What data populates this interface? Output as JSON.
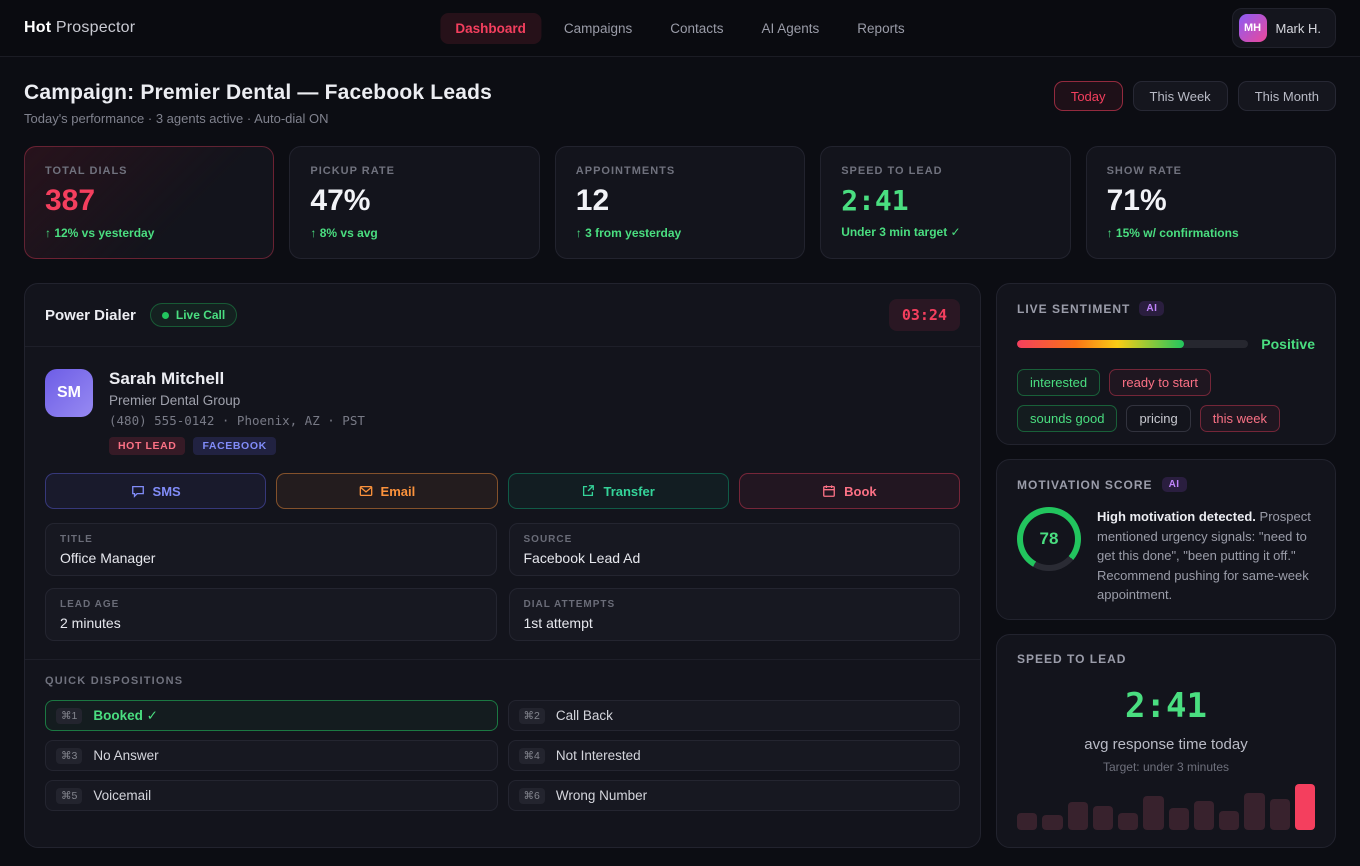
{
  "brand": {
    "name_bold": "Hot",
    "name_light": " Prospector"
  },
  "nav": {
    "items": [
      {
        "label": "Dashboard",
        "active": true
      },
      {
        "label": "Campaigns",
        "active": false
      },
      {
        "label": "Contacts",
        "active": false
      },
      {
        "label": "AI Agents",
        "active": false
      },
      {
        "label": "Reports",
        "active": false
      }
    ],
    "user": {
      "initials": "MH",
      "name": "Mark H."
    }
  },
  "campaign": {
    "title": "Campaign: Premier Dental — Facebook Leads",
    "subtitle": "Today's performance · 3 agents active · Auto-dial ON",
    "ranges": [
      {
        "label": "Today",
        "active": true
      },
      {
        "label": "This Week",
        "active": false
      },
      {
        "label": "This Month",
        "active": false
      }
    ]
  },
  "stats": [
    {
      "label": "Total Dials",
      "value": "387",
      "delta": "↑ 12% vs yesterday"
    },
    {
      "label": "Pickup Rate",
      "value": "47%",
      "delta": "↑ 8% vs avg"
    },
    {
      "label": "Appointments",
      "value": "12",
      "delta": "↑ 3 from yesterday"
    },
    {
      "label": "Speed to Lead",
      "value": "2:41",
      "delta": "Under 3 min target ✓"
    },
    {
      "label": "Show Rate",
      "value": "71%",
      "delta": "↑ 15% w/ confirmations"
    }
  ],
  "dialer": {
    "title": "Power Dialer",
    "live_badge": "Live Call",
    "timer": "03:24",
    "contact": {
      "initials": "SM",
      "name": "Sarah Mitchell",
      "company": "Premier Dental Group",
      "meta": "(480) 555-0142 · Phoenix, AZ · PST",
      "tags": [
        {
          "label": "HOT LEAD"
        },
        {
          "label": "FACEBOOK"
        }
      ]
    },
    "actions": [
      {
        "label": "SMS",
        "icon": "chat-bubble-icon"
      },
      {
        "label": "Email",
        "icon": "envelope-icon"
      },
      {
        "label": "Transfer",
        "icon": "external-arrow-icon"
      },
      {
        "label": "Book",
        "icon": "calendar-icon"
      }
    ],
    "fields": [
      {
        "label": "Title",
        "value": "Office Manager"
      },
      {
        "label": "Source",
        "value": "Facebook Lead Ad"
      },
      {
        "label": "Lead Age",
        "value": "2 minutes"
      },
      {
        "label": "Dial Attempts",
        "value": "1st attempt"
      }
    ],
    "dispositions": {
      "title": "Quick Dispositions",
      "items": [
        {
          "key": "⌘1",
          "label": "Booked ✓",
          "active": true
        },
        {
          "key": "⌘2",
          "label": "Call Back",
          "active": false
        },
        {
          "key": "⌘3",
          "label": "No Answer",
          "active": false
        },
        {
          "key": "⌘4",
          "label": "Not Interested",
          "active": false
        },
        {
          "key": "⌘5",
          "label": "Voicemail",
          "active": false
        },
        {
          "key": "⌘6",
          "label": "Wrong Number",
          "active": false
        }
      ]
    }
  },
  "sentiment": {
    "title": "Live Sentiment",
    "ai_badge": "AI",
    "value_label": "Positive",
    "fill_pct": 72,
    "tags": [
      {
        "label": "interested",
        "type": "green"
      },
      {
        "label": "ready to start",
        "type": "red"
      },
      {
        "label": "sounds good",
        "type": "green"
      },
      {
        "label": "pricing",
        "type": "neutral"
      },
      {
        "label": "this week",
        "type": "red"
      }
    ]
  },
  "motivation": {
    "title": "Motivation Score",
    "ai_badge": "AI",
    "score": 78,
    "text_bold": "High motivation detected.",
    "text_rest": " Prospect mentioned urgency signals: \"need to get this done\", \"been putting it off.\" Recommend pushing for same-week appointment."
  },
  "speed_panel": {
    "title": "Speed to Lead",
    "value": "2:41",
    "caption": "avg response time today",
    "target": "Target: under 3 minutes"
  },
  "chart_data": {
    "type": "bar",
    "title": "Speed to lead response times (mini sparkline)",
    "values": [
      38,
      32,
      60,
      52,
      38,
      75,
      48,
      62,
      42,
      80,
      68,
      100
    ],
    "highlight_index": 11,
    "bar_color": "#38222d",
    "highlight_color": "#f43f5e"
  },
  "colors": {
    "accent_red": "#f43f5e",
    "accent_green": "#4ade80",
    "accent_purple": "#c084fc"
  }
}
